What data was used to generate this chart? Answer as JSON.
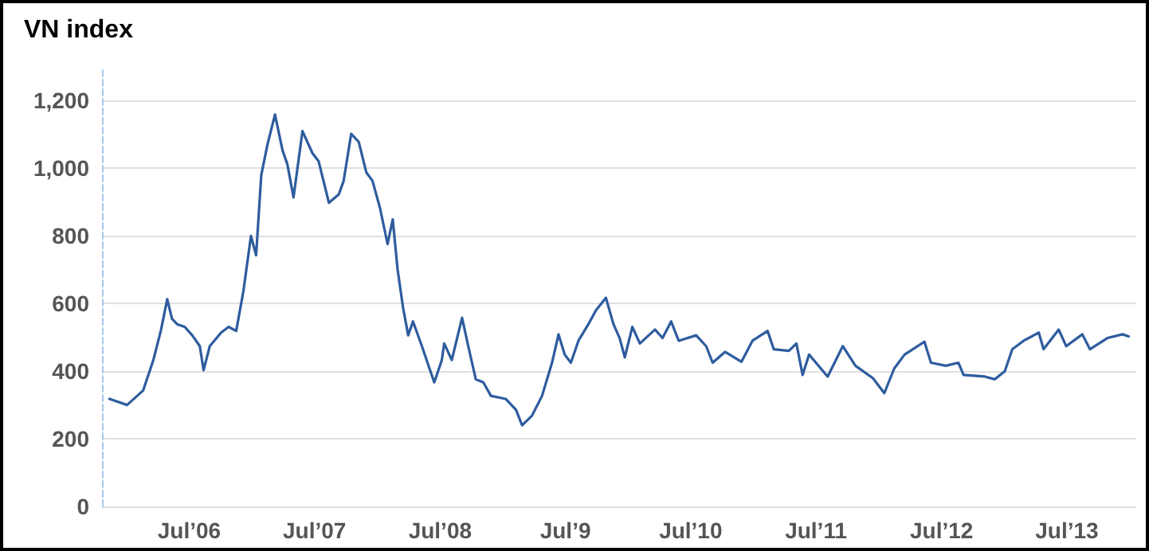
{
  "chart_data": {
    "type": "line",
    "title": "VN index",
    "x": [
      "2005-11-11",
      "2006-01-01",
      "2006-02-17",
      "2006-03-19",
      "2006-04-10",
      "2006-04-28",
      "2006-05-12",
      "2006-05-27",
      "2006-06-18",
      "2006-07-10",
      "2006-08-01",
      "2006-08-12",
      "2006-08-30",
      "2006-10-02",
      "2006-10-24",
      "2006-11-15",
      "2006-12-06",
      "2006-12-28",
      "2007-01-12",
      "2007-01-27",
      "2007-02-14",
      "2007-03-08",
      "2007-03-30",
      "2007-04-13",
      "2007-05-01",
      "2007-05-27",
      "2007-06-25",
      "2007-07-13",
      "2007-08-12",
      "2007-09-10",
      "2007-09-24",
      "2007-10-16",
      "2007-11-07",
      "2007-11-29",
      "2007-12-17",
      "2008-01-08",
      "2008-01-30",
      "2008-02-14",
      "2008-02-28",
      "2008-03-15",
      "2008-03-30",
      "2008-04-13",
      "2008-05-09",
      "2008-05-31",
      "2008-06-14",
      "2008-07-06",
      "2008-07-13",
      "2008-08-04",
      "2008-09-03",
      "2008-09-21",
      "2008-10-13",
      "2008-11-04",
      "2008-11-26",
      "2009-01-08",
      "2009-02-07",
      "2009-02-25",
      "2009-03-26",
      "2009-04-24",
      "2009-05-23",
      "2009-06-11",
      "2009-06-29",
      "2009-07-17",
      "2009-08-08",
      "2009-09-06",
      "2009-09-28",
      "2009-10-27",
      "2009-11-18",
      "2009-12-06",
      "2009-12-21",
      "2010-01-12",
      "2010-02-03",
      "2010-03-19",
      "2010-04-10",
      "2010-05-05",
      "2010-05-27",
      "2010-07-17",
      "2010-08-15",
      "2010-09-03",
      "2010-10-09",
      "2010-11-26",
      "2010-12-28",
      "2011-02-10",
      "2011-02-28",
      "2011-04-13",
      "2011-05-05",
      "2011-05-23",
      "2011-06-11",
      "2011-08-04",
      "2011-09-17",
      "2011-10-24",
      "2011-12-14",
      "2012-01-16",
      "2012-02-14",
      "2012-03-15",
      "2012-05-12",
      "2012-05-31",
      "2012-07-13",
      "2012-08-19",
      "2012-09-03",
      "2012-11-04",
      "2012-12-03",
      "2013-01-01",
      "2013-01-23",
      "2013-02-25",
      "2013-04-10",
      "2013-04-24",
      "2013-06-07",
      "2013-06-29",
      "2013-08-15",
      "2013-09-06",
      "2013-10-27",
      "2013-12-10",
      "2013-12-28"
    ],
    "series": [
      {
        "color": "#2e5c9e",
        "values": [
          318,
          300,
          343,
          434,
          522,
          613,
          555,
          539,
          531,
          506,
          474,
          403,
          474,
          514,
          531,
          519,
          637,
          800,
          743,
          980,
          1070,
          1159,
          1053,
          1012,
          914,
          1110,
          1045,
          1021,
          898,
          923,
          963,
          1102,
          1078,
          988,
          963,
          882,
          776,
          849,
          702,
          588,
          506,
          547,
          474,
          408,
          367,
          433,
          482,
          433,
          558,
          474,
          376,
          367,
          327,
          318,
          286,
          240,
          269,
          327,
          425,
          509,
          449,
          425,
          490,
          539,
          580,
          617,
          539,
          498,
          441,
          531,
          482,
          523,
          498,
          547,
          490,
          506,
          474,
          425,
          457,
          428,
          490,
          519,
          465,
          460,
          482,
          389,
          449,
          384,
          474,
          416,
          379,
          335,
          408,
          449,
          487,
          425,
          416,
          425,
          389,
          384,
          376,
          400,
          465,
          490,
          514,
          465,
          523,
          474,
          509,
          465,
          498,
          509,
          503
        ]
      }
    ],
    "xlim": [
      "2005-10-20",
      "2014-01-19"
    ],
    "xticks": [
      {
        "value": "2006-07-01",
        "label": "Jul’06"
      },
      {
        "value": "2007-07-01",
        "label": "Jul’07"
      },
      {
        "value": "2008-07-01",
        "label": "Jul’08"
      },
      {
        "value": "2009-07-01",
        "label": "Jul’9"
      },
      {
        "value": "2010-07-01",
        "label": "Jul’10"
      },
      {
        "value": "2011-07-01",
        "label": "Jul’11"
      },
      {
        "value": "2012-07-01",
        "label": "Jul’12"
      },
      {
        "value": "2013-07-01",
        "label": "Jul’13"
      }
    ],
    "ylim": [
      0,
      1300
    ],
    "yticks": [
      0,
      200,
      400,
      600,
      800,
      {
        "value": 1000,
        "label": "1,000"
      },
      {
        "value": 1200,
        "label": "1,200"
      }
    ],
    "grid": "y",
    "marker": "none",
    "line_style": "solid"
  }
}
